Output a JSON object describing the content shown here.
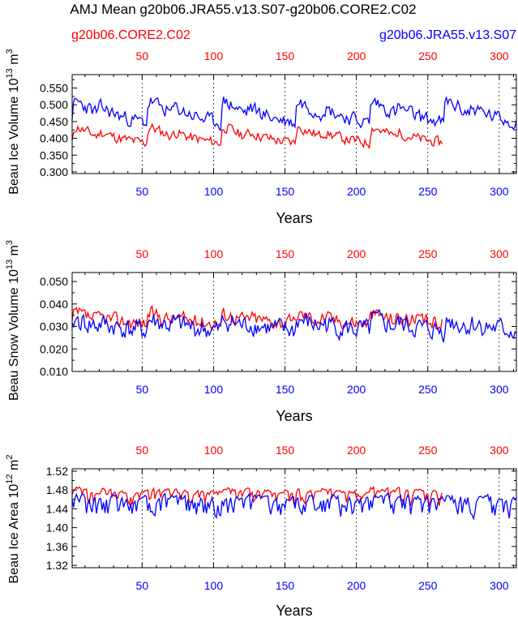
{
  "title": "AMJ Mean g20b06.JRA55.v13.S07-g20b06.CORE2.C02",
  "legend": {
    "left_label": "g20b06.CORE2.C02",
    "left_color": "#ff0000",
    "right_label": "g20b06.JRA55.v13.S07",
    "right_color": "#0000ff"
  },
  "chart_data": [
    {
      "type": "line",
      "ylabel_main": "Beau Ice Volume 10",
      "ylabel_exp": "13",
      "ylabel_unit": " m",
      "ylabel_unit_exp": "3",
      "xlabel": "Years",
      "ylim": [
        0.295,
        0.59
      ],
      "yticks": [
        0.3,
        0.35,
        0.4,
        0.45,
        0.5,
        0.55
      ],
      "ytick_labels": [
        "0.300",
        "0.350",
        "0.400",
        "0.450",
        "0.500",
        "0.550"
      ],
      "xlim_top": [
        1,
        312
      ],
      "xticks_top": [
        50,
        100,
        150,
        200,
        250,
        300
      ],
      "xticks_top_labels": [
        "50",
        "100",
        "150",
        "200",
        "250",
        "300"
      ],
      "xlim_bottom": [
        1,
        312
      ],
      "xticks_bottom": [
        50,
        100,
        150,
        200,
        250,
        300
      ],
      "xticks_bottom_labels": [
        "50",
        "100",
        "150",
        "200",
        "250",
        "300"
      ],
      "series": [
        {
          "name": "g20b06.CORE2.C02",
          "color": "#ff0000",
          "n": 260,
          "base": 0.375,
          "amp": 0.06,
          "decay": 0.095,
          "noise": 0.022,
          "lo": 0.295,
          "hi": 0.48,
          "seed": 11
        },
        {
          "name": "g20b06.JRA55.v13.S07",
          "color": "#0000ff",
          "n": 312,
          "base": 0.425,
          "amp": 0.085,
          "decay": 0.08,
          "noise": 0.03,
          "lo": 0.33,
          "hi": 0.585,
          "seed": 23
        }
      ]
    },
    {
      "type": "line",
      "ylabel_main": "Beau Snow Volume 10",
      "ylabel_exp": "13",
      "ylabel_unit": " m",
      "ylabel_unit_exp": "3",
      "xlabel": "Years",
      "ylim": [
        0.01,
        0.054
      ],
      "yticks": [
        0.01,
        0.02,
        0.03,
        0.04,
        0.05
      ],
      "ytick_labels": [
        "0.010",
        "0.020",
        "0.030",
        "0.040",
        "0.050"
      ],
      "xlim_top": [
        1,
        312
      ],
      "xticks_top": [
        50,
        100,
        150,
        200,
        250,
        300
      ],
      "xticks_top_labels": [
        "50",
        "100",
        "150",
        "200",
        "250",
        "300"
      ],
      "xlim_bottom": [
        1,
        312
      ],
      "xticks_bottom": [
        50,
        100,
        150,
        200,
        250,
        300
      ],
      "xticks_bottom_labels": [
        "50",
        "100",
        "150",
        "200",
        "250",
        "300"
      ],
      "series": [
        {
          "name": "g20b06.CORE2.C02",
          "color": "#ff0000",
          "n": 260,
          "base": 0.031,
          "amp": 0.005,
          "decay": 0.12,
          "noise": 0.0045,
          "lo": 0.016,
          "hi": 0.049,
          "seed": 37
        },
        {
          "name": "g20b06.JRA55.v13.S07",
          "color": "#0000ff",
          "n": 312,
          "base": 0.027,
          "amp": 0.006,
          "decay": 0.1,
          "noise": 0.0065,
          "lo": 0.01,
          "hi": 0.053,
          "seed": 41
        }
      ]
    },
    {
      "type": "line",
      "ylabel_main": "Beau Ice Area 10",
      "ylabel_exp": "12",
      "ylabel_unit": " m",
      "ylabel_unit_exp": "2",
      "xlabel": "Years",
      "ylim": [
        1.315,
        1.525
      ],
      "yticks": [
        1.32,
        1.36,
        1.4,
        1.44,
        1.48,
        1.52
      ],
      "ytick_labels": [
        "1.32",
        "1.36",
        "1.40",
        "1.44",
        "1.48",
        "1.52"
      ],
      "xlim_top": [
        1,
        312
      ],
      "xticks_top": [
        50,
        100,
        150,
        200,
        250,
        300
      ],
      "xticks_top_labels": [
        "50",
        "100",
        "150",
        "200",
        "250",
        "300"
      ],
      "xlim_bottom": [
        1,
        312
      ],
      "xticks_bottom": [
        50,
        100,
        150,
        200,
        250,
        300
      ],
      "xticks_bottom_labels": [
        "50",
        "100",
        "150",
        "200",
        "250",
        "300"
      ],
      "series": [
        {
          "name": "g20b06.CORE2.C02",
          "color": "#ff0000",
          "n": 260,
          "base": 1.47,
          "amp": 0.01,
          "decay": 0.1,
          "noise": 0.028,
          "lo": 1.38,
          "hi": 1.522,
          "seed": 53,
          "skew": true
        },
        {
          "name": "g20b06.JRA55.v13.S07",
          "color": "#0000ff",
          "n": 312,
          "base": 1.455,
          "amp": 0.01,
          "decay": 0.1,
          "noise": 0.04,
          "lo": 1.318,
          "hi": 1.52,
          "seed": 67,
          "skew": true
        }
      ]
    }
  ]
}
